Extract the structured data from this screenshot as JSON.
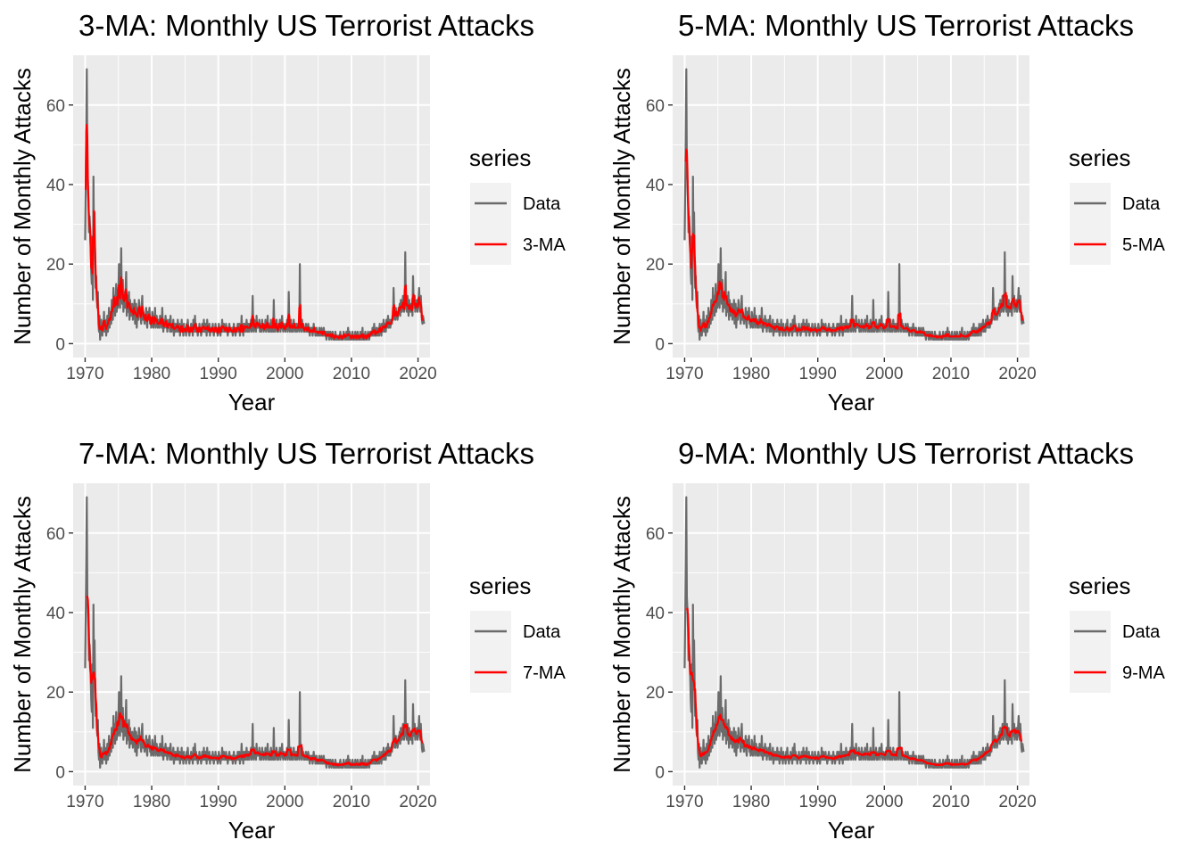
{
  "theme": {
    "panel_background": "#EBEBEB",
    "grid_color": "#FFFFFF",
    "data_color": "#6B6B6B",
    "ma_color": "#FF0000",
    "legend_key_background": "#F2F2F2",
    "text_color": "#000000",
    "tick_label_color": "#4D4D4D"
  },
  "chart_data": [
    {
      "type": "line",
      "title": "3-MA: Monthly US Terrorist Attacks",
      "xlabel": "Year",
      "ylabel": "Number of Monthly Attacks",
      "xlim": [
        1968.2,
        2021.8
      ],
      "ylim": [
        -3.5,
        72.5
      ],
      "x_ticks": [
        1970,
        1980,
        1990,
        2000,
        2010,
        2020
      ],
      "y_ticks": [
        0,
        20,
        40,
        60
      ],
      "grid": true,
      "legend": {
        "title": "series",
        "position": "right",
        "entries": [
          "Data",
          "3-MA"
        ]
      },
      "ma_window": 3,
      "series": [
        {
          "name": "Data",
          "color": "#6B6B6B"
        },
        {
          "name": "3-MA",
          "color": "#FF0000"
        }
      ]
    },
    {
      "type": "line",
      "title": "5-MA: Monthly US Terrorist Attacks",
      "xlabel": "Year",
      "ylabel": "Number of Monthly Attacks",
      "xlim": [
        1968.2,
        2021.8
      ],
      "ylim": [
        -3.5,
        72.5
      ],
      "x_ticks": [
        1970,
        1980,
        1990,
        2000,
        2010,
        2020
      ],
      "y_ticks": [
        0,
        20,
        40,
        60
      ],
      "grid": true,
      "legend": {
        "title": "series",
        "position": "right",
        "entries": [
          "Data",
          "5-MA"
        ]
      },
      "ma_window": 5,
      "series": [
        {
          "name": "Data",
          "color": "#6B6B6B"
        },
        {
          "name": "5-MA",
          "color": "#FF0000"
        }
      ]
    },
    {
      "type": "line",
      "title": "7-MA: Monthly US Terrorist Attacks",
      "xlabel": "Year",
      "ylabel": "Number of Monthly Attacks",
      "xlim": [
        1968.2,
        2021.8
      ],
      "ylim": [
        -3.5,
        72.5
      ],
      "x_ticks": [
        1970,
        1980,
        1990,
        2000,
        2010,
        2020
      ],
      "y_ticks": [
        0,
        20,
        40,
        60
      ],
      "grid": true,
      "legend": {
        "title": "series",
        "position": "right",
        "entries": [
          "Data",
          "7-MA"
        ]
      },
      "ma_window": 7,
      "series": [
        {
          "name": "Data",
          "color": "#6B6B6B"
        },
        {
          "name": "7-MA",
          "color": "#FF0000"
        }
      ]
    },
    {
      "type": "line",
      "title": "9-MA: Monthly US Terrorist Attacks",
      "xlabel": "Year",
      "ylabel": "Number of Monthly Attacks",
      "xlim": [
        1968.2,
        2021.8
      ],
      "ylim": [
        -3.5,
        72.5
      ],
      "x_ticks": [
        1970,
        1980,
        1990,
        2000,
        2010,
        2020
      ],
      "y_ticks": [
        0,
        20,
        40,
        60
      ],
      "grid": true,
      "legend": {
        "title": "series",
        "position": "right",
        "entries": [
          "Data",
          "9-MA"
        ]
      },
      "ma_window": 9,
      "series": [
        {
          "name": "Data",
          "color": "#6B6B6B"
        },
        {
          "name": "9-MA",
          "color": "#FF0000"
        }
      ]
    }
  ],
  "monthly_data": {
    "x_start": 1970.0,
    "x_step": 0.0833333,
    "values": [
      26,
      38,
      52,
      69,
      44,
      41,
      36,
      28,
      32,
      29,
      24,
      18,
      15,
      27,
      11,
      42,
      25,
      33,
      22,
      14,
      17,
      11,
      9,
      13,
      5,
      3,
      7,
      1,
      4,
      6,
      3,
      2,
      5,
      4,
      8,
      3,
      6,
      5,
      2,
      4,
      7,
      3,
      5,
      9,
      4,
      6,
      8,
      5,
      11,
      8,
      6,
      14,
      9,
      12,
      7,
      10,
      15,
      8,
      12,
      9,
      13,
      20,
      11,
      9,
      14,
      24,
      12,
      10,
      16,
      8,
      13,
      11,
      9,
      14,
      18,
      7,
      12,
      8,
      10,
      13,
      6,
      11,
      9,
      7,
      8,
      10,
      6,
      9,
      7,
      11,
      5,
      8,
      10,
      4,
      7,
      9,
      6,
      11,
      9,
      8,
      7,
      5,
      10,
      12,
      6,
      8,
      7,
      5,
      7,
      6,
      9,
      5,
      4,
      8,
      6,
      7,
      9,
      5,
      6,
      4,
      5,
      8,
      7,
      4,
      6,
      5,
      9,
      4,
      6,
      7,
      5,
      4,
      6,
      5,
      4,
      7,
      5,
      6,
      4,
      9,
      5,
      3,
      6,
      4,
      5,
      7,
      4,
      6,
      3,
      5,
      4,
      6,
      5,
      3,
      7,
      4,
      3,
      5,
      4,
      6,
      2,
      4,
      5,
      3,
      4,
      5,
      3,
      6,
      4,
      3,
      5,
      2,
      4,
      3,
      6,
      3,
      4,
      2,
      5,
      3,
      3,
      4,
      2,
      5,
      3,
      6,
      4,
      3,
      2,
      4,
      3,
      5,
      3,
      4,
      2,
      6,
      3,
      4,
      7,
      3,
      5,
      3,
      4,
      2,
      4,
      3,
      5,
      3,
      4,
      2,
      3,
      5,
      4,
      3,
      6,
      3,
      3,
      5,
      4,
      2,
      6,
      3,
      4,
      3,
      5,
      2,
      4,
      3,
      4,
      3,
      5,
      3,
      2,
      4,
      3,
      5,
      3,
      4,
      3,
      2,
      3,
      5,
      4,
      3,
      2,
      4,
      3,
      6,
      3,
      4,
      5,
      3,
      4,
      3,
      5,
      3,
      4,
      2,
      3,
      4,
      5,
      3,
      4,
      3,
      3,
      4,
      2,
      3,
      5,
      3,
      4,
      2,
      3,
      4,
      3,
      5,
      4,
      3,
      5,
      2,
      4,
      3,
      7,
      3,
      4,
      2,
      5,
      3,
      5,
      4,
      3,
      6,
      4,
      3,
      5,
      4,
      3,
      5,
      4,
      6,
      3,
      5,
      12,
      4,
      3,
      6,
      5,
      4,
      3,
      7,
      4,
      5,
      5,
      4,
      6,
      3,
      5,
      4,
      3,
      6,
      4,
      5,
      3,
      4,
      4,
      6,
      3,
      5,
      4,
      7,
      3,
      4,
      5,
      3,
      4,
      6,
      3,
      4,
      5,
      3,
      11,
      4,
      3,
      5,
      4,
      6,
      3,
      4,
      3,
      5,
      4,
      6,
      3,
      4,
      5,
      7,
      4,
      3,
      5,
      4,
      4,
      3,
      5,
      4,
      6,
      3,
      4,
      13,
      5,
      3,
      4,
      6,
      3,
      5,
      4,
      3,
      6,
      4,
      5,
      3,
      4,
      5,
      3,
      4,
      5,
      4,
      3,
      20,
      5,
      4,
      3,
      6,
      4,
      5,
      3,
      4,
      3,
      4,
      5,
      3,
      4,
      3,
      5,
      4,
      3,
      2,
      4,
      3,
      3,
      4,
      2,
      3,
      5,
      3,
      4,
      2,
      3,
      4,
      2,
      3,
      3,
      2,
      4,
      3,
      2,
      3,
      4,
      2,
      3,
      2,
      4,
      3,
      2,
      3,
      2,
      1,
      3,
      2,
      2,
      3,
      1,
      2,
      3,
      2,
      1,
      2,
      3,
      2,
      1,
      2,
      1,
      3,
      2,
      1,
      2,
      2,
      1,
      2,
      1,
      2,
      3,
      1,
      2,
      1,
      2,
      1,
      3,
      2,
      2,
      1,
      2,
      3,
      1,
      2,
      4,
      1,
      2,
      3,
      1,
      2,
      1,
      2,
      3,
      1,
      2,
      1,
      2,
      3,
      1,
      2,
      1,
      3,
      2,
      1,
      2,
      1,
      3,
      2,
      1,
      2,
      4,
      1,
      2,
      1,
      2,
      3,
      1,
      2,
      1,
      2,
      3,
      2,
      1,
      2,
      3,
      2,
      3,
      2,
      4,
      2,
      3,
      5,
      2,
      3,
      2,
      4,
      3,
      2,
      3,
      4,
      2,
      5,
      3,
      4,
      2,
      5,
      3,
      4,
      6,
      3,
      4,
      5,
      3,
      6,
      4,
      5,
      7,
      4,
      5,
      6,
      4,
      5,
      6,
      5,
      7,
      6,
      14,
      8,
      7,
      6,
      9,
      7,
      8,
      6,
      7,
      9,
      8,
      10,
      7,
      11,
      9,
      8,
      10,
      12,
      9,
      8,
      9,
      23,
      11,
      10,
      8,
      12,
      9,
      7,
      11,
      8,
      10,
      9,
      8,
      10,
      7,
      17,
      11,
      9,
      12,
      8,
      10,
      9,
      11,
      8,
      9,
      11,
      14,
      10,
      8,
      12,
      9,
      6,
      5,
      7,
      6,
      5
    ]
  }
}
